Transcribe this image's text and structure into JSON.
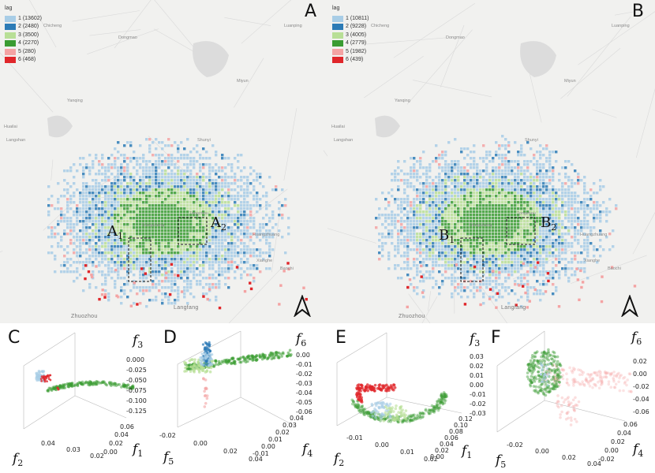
{
  "maps": [
    {
      "letter": "A",
      "legend_title": "lag",
      "legend": [
        {
          "label": "1 (13602)",
          "color": "#a8cde6"
        },
        {
          "label": "2 (2480)",
          "color": "#2c7bb6"
        },
        {
          "label": "3 (3500)",
          "color": "#b8df96"
        },
        {
          "label": "4 (2270)",
          "color": "#3a9c32"
        },
        {
          "label": "5 (280)",
          "color": "#f4a3a3"
        },
        {
          "label": "6 (468)",
          "color": "#e0262a"
        }
      ],
      "regions": [
        {
          "main": "A",
          "sub": "1"
        },
        {
          "main": "A",
          "sub": "2"
        }
      ],
      "places": [
        "Chicheng",
        "Dongmao",
        "Luanping",
        "Yanqing",
        "Huailai",
        "Langshan",
        "Tongzhou",
        "Dongcheng",
        "Huangzhuang",
        "Xianghe",
        "Baochi",
        "Zhuozhou",
        "Langfang",
        "Shunyi",
        "Miyun"
      ]
    },
    {
      "letter": "B",
      "legend_title": "lag",
      "legend": [
        {
          "label": "1 (10811)",
          "color": "#a8cde6"
        },
        {
          "label": "2 (9228)",
          "color": "#2c7bb6"
        },
        {
          "label": "3 (4005)",
          "color": "#b8df96"
        },
        {
          "label": "4 (2779)",
          "color": "#3a9c32"
        },
        {
          "label": "5 (1982)",
          "color": "#f4a3a3"
        },
        {
          "label": "6 (439)",
          "color": "#e0262a"
        }
      ],
      "regions": [
        {
          "main": "B",
          "sub": "1"
        },
        {
          "main": "B",
          "sub": "2"
        }
      ],
      "places": [
        "Chicheng",
        "Dongmao",
        "Luanping",
        "Yanqing",
        "Huailai",
        "Langshan",
        "Tongzhou",
        "Dongcheng",
        "Huangzhuang",
        "Xianghe",
        "Baochi",
        "Zhuozhou",
        "Langfang",
        "Shunyi",
        "Miyun"
      ]
    }
  ],
  "chart_data": [
    {
      "panel": "C",
      "type": "scatter",
      "axes": [
        {
          "name": "f",
          "sub": "3"
        },
        {
          "name": "f",
          "sub": "2"
        },
        {
          "name": "f",
          "sub": "1"
        }
      ],
      "vertical_ticks": [
        "0.000",
        "-0.025",
        "-0.050",
        "-0.075",
        "-0.100",
        "-0.125"
      ],
      "left_ticks": [
        "0.04",
        "0.03",
        "0.02"
      ],
      "right_ticks": [
        "0.06",
        "0.04",
        "0.02",
        "0.00"
      ]
    },
    {
      "panel": "D",
      "type": "scatter",
      "axes": [
        {
          "name": "f",
          "sub": "6"
        },
        {
          "name": "f",
          "sub": "5"
        },
        {
          "name": "f",
          "sub": "4"
        }
      ],
      "vertical_ticks": [
        "0.00",
        "-0.01",
        "-0.02",
        "-0.03",
        "-0.04",
        "-0.05",
        "-0.06"
      ],
      "left_ticks": [
        "-0.02",
        "0.00",
        "0.02",
        "0.04"
      ],
      "right_ticks": [
        "0.04",
        "0.03",
        "0.02",
        "0.01",
        "0.00",
        "-0.01"
      ]
    },
    {
      "panel": "E",
      "type": "scatter",
      "axes": [
        {
          "name": "f",
          "sub": "3"
        },
        {
          "name": "f",
          "sub": "2"
        },
        {
          "name": "f",
          "sub": "1"
        }
      ],
      "vertical_ticks": [
        "0.03",
        "0.02",
        "0.01",
        "0.00",
        "-0.01",
        "-0.02",
        "-0.03"
      ],
      "left_ticks": [
        "-0.01",
        "0.00",
        "0.01",
        "0.02"
      ],
      "right_ticks": [
        "0.12",
        "0.10",
        "0.08",
        "0.06",
        "0.04",
        "0.02",
        "0.00"
      ]
    },
    {
      "panel": "F",
      "type": "scatter",
      "axes": [
        {
          "name": "f",
          "sub": "6"
        },
        {
          "name": "f",
          "sub": "5"
        },
        {
          "name": "f",
          "sub": "4"
        }
      ],
      "vertical_ticks": [
        "0.02",
        "0.00",
        "-0.02",
        "-0.04",
        "-0.06"
      ],
      "left_ticks": [
        "-0.02",
        "0.00",
        "0.02",
        "0.04"
      ],
      "right_ticks": [
        "0.06",
        "0.04",
        "0.02",
        "0.00",
        "-0.02"
      ]
    }
  ]
}
